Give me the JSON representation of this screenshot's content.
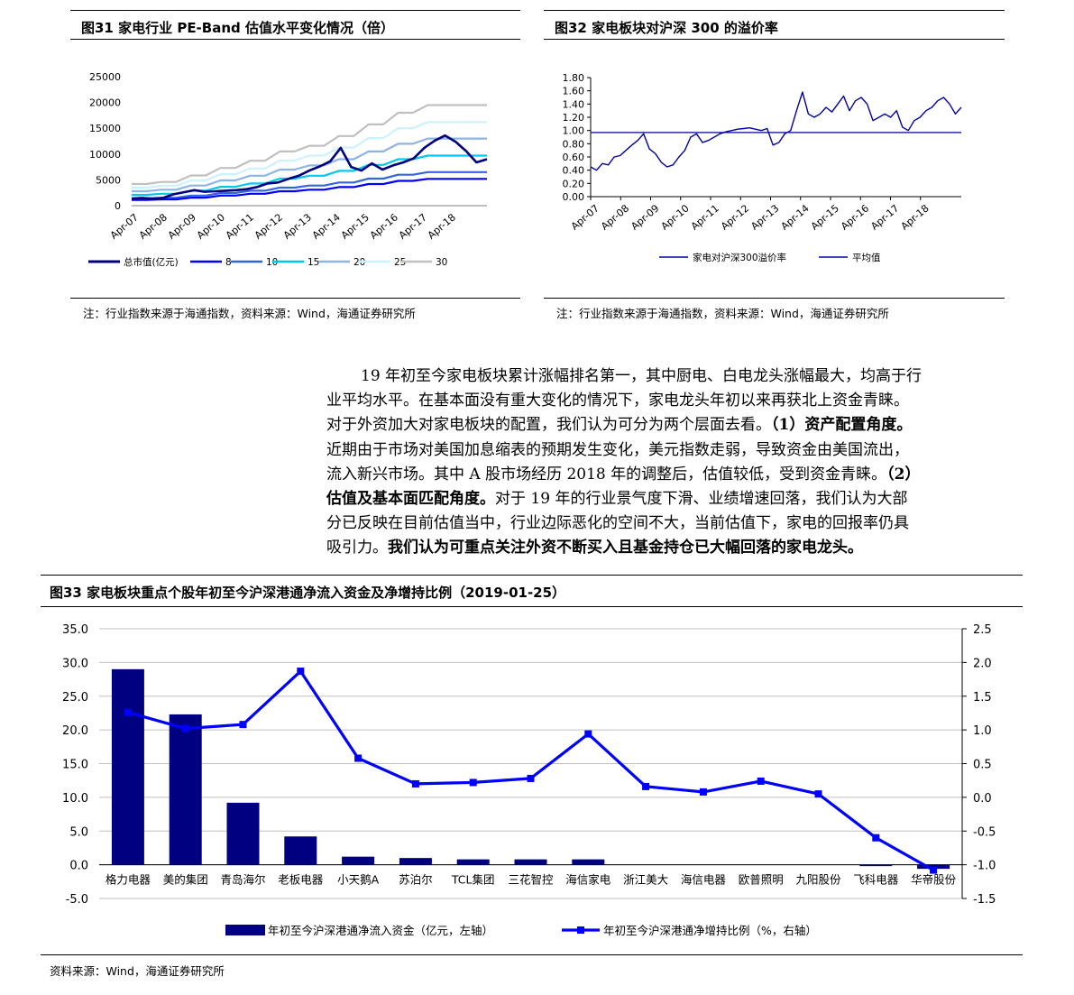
{
  "fig31": {
    "title": "图31 家电行业 PE-Band 估值水平变化情况（倍）",
    "note": "注：行业指数来源于海通指数，资料来源：Wind，海通证券研究所",
    "chart_data": {
      "type": "line",
      "title": "图31 家电行业 PE-Band 估值水平变化情况（倍）",
      "ylim": [
        0,
        25000
      ],
      "y_ticks": [
        "25000",
        "20000",
        "15000",
        "10000",
        "5000",
        "0"
      ],
      "x_ticks": [
        "Apr-07",
        "Apr-08",
        "Apr-09",
        "Apr-10",
        "Apr-11",
        "Apr-12",
        "Apr-13",
        "Apr-14",
        "Apr-15",
        "Apr-16",
        "Apr-17",
        "Apr-18"
      ],
      "series": [
        {
          "name": "总市值(亿元)",
          "color": "#00007f",
          "values": [
            1400,
            1500,
            1350,
            1500,
            2200,
            2600,
            3000,
            2700,
            2800,
            2900,
            3000,
            3200,
            3600,
            4300,
            4500,
            5200,
            5800,
            6800,
            7600,
            8600,
            11200,
            7500,
            6800,
            8200,
            7000,
            7800,
            8400,
            9200,
            11200,
            12600,
            13600,
            12400,
            10600,
            8400,
            9000
          ]
        },
        {
          "name": "8",
          "color": "#0000ff",
          "values": [
            1120,
            1120,
            1230,
            1230,
            1560,
            1560,
            1950,
            1950,
            2300,
            2300,
            2800,
            2800,
            3100,
            3100,
            3600,
            3600,
            4200,
            4200,
            4800,
            4800,
            5200,
            5200,
            5200,
            5200,
            5200
          ]
        },
        {
          "name": "10",
          "color": "#3366dd",
          "values": [
            1400,
            1400,
            1540,
            1540,
            1950,
            1950,
            2440,
            2440,
            2900,
            2900,
            3500,
            3500,
            3900,
            3900,
            4500,
            4500,
            5250,
            5250,
            6000,
            6000,
            6500,
            6500,
            6500,
            6500,
            6500
          ]
        },
        {
          "name": "15",
          "color": "#00c8f0",
          "values": [
            2100,
            2100,
            2300,
            2300,
            2900,
            2900,
            3650,
            3650,
            4300,
            4300,
            5250,
            5250,
            5800,
            5800,
            6750,
            6750,
            7900,
            7900,
            9000,
            9000,
            9700,
            9700,
            9700,
            9700,
            9700
          ]
        },
        {
          "name": "20",
          "color": "#8eb4e3",
          "values": [
            2800,
            2800,
            3100,
            3100,
            3900,
            3900,
            4900,
            4900,
            5800,
            5800,
            7000,
            7000,
            7800,
            7800,
            9000,
            9000,
            10500,
            10500,
            12000,
            12000,
            13000,
            13000,
            13000,
            13000,
            13000
          ]
        },
        {
          "name": "25",
          "color": "#ccf2ff",
          "values": [
            3500,
            3500,
            3850,
            3850,
            4900,
            4900,
            6100,
            6100,
            7200,
            7200,
            8750,
            8750,
            9700,
            9700,
            11250,
            11250,
            13100,
            13100,
            15000,
            15000,
            16200,
            16200,
            16200,
            16200,
            16200
          ]
        },
        {
          "name": "30",
          "color": "#c0c0c0",
          "values": [
            4200,
            4200,
            4600,
            4600,
            5850,
            5850,
            7300,
            7300,
            8700,
            8700,
            10500,
            10500,
            11600,
            11600,
            13500,
            13500,
            15750,
            15750,
            18000,
            18000,
            19500,
            19500,
            19500,
            19500,
            19500
          ]
        }
      ]
    }
  },
  "fig32": {
    "title": "图32 家电板块对沪深 300 的溢价率",
    "note": "注：行业指数来源于海通指数，资料来源：Wind，海通证券研究所",
    "chart_data": {
      "type": "line",
      "title": "图32 家电板块对沪深 300 的溢价率",
      "ylim": [
        0,
        1.8
      ],
      "y_ticks": [
        "1.80",
        "1.60",
        "1.40",
        "1.20",
        "1.00",
        "0.80",
        "0.60",
        "0.40",
        "0.20",
        "0.00"
      ],
      "x_ticks": [
        "Apr-07",
        "Apr-08",
        "Apr-09",
        "Apr-10",
        "Apr-11",
        "Apr-12",
        "Apr-13",
        "Apr-14",
        "Apr-15",
        "Apr-16",
        "Apr-17",
        "Apr-18"
      ],
      "series": [
        {
          "name": "家电对沪深300溢价率",
          "color": "#0000a0",
          "values": [
            0.45,
            0.4,
            0.5,
            0.48,
            0.6,
            0.62,
            0.7,
            0.78,
            0.85,
            0.95,
            0.72,
            0.65,
            0.52,
            0.45,
            0.48,
            0.6,
            0.7,
            0.9,
            0.95,
            0.82,
            0.85,
            0.9,
            0.95,
            0.98,
            1.0,
            1.02,
            1.03,
            1.04,
            1.02,
            1.0,
            1.03,
            0.78,
            0.82,
            0.95,
            1.0,
            1.3,
            1.58,
            1.25,
            1.2,
            1.25,
            1.35,
            1.28,
            1.4,
            1.52,
            1.3,
            1.45,
            1.5,
            1.4,
            1.15,
            1.2,
            1.25,
            1.2,
            1.3,
            1.05,
            1.0,
            1.15,
            1.2,
            1.3,
            1.35,
            1.45,
            1.5,
            1.4,
            1.25,
            1.35
          ]
        },
        {
          "name": "平均值",
          "color": "#0000a0",
          "values": [
            0.97,
            0.97
          ]
        }
      ]
    }
  },
  "paragraph": {
    "line1": "19 年初至今家电板块累计涨幅排名第一，其中厨电、白电龙头涨幅最大，均高于行",
    "line2": "业平均水平。在基本面没有重大变化的情况下，家电龙头年初以来再获北上资金青睐。",
    "line3a": "对于外资加大对家电板块的配置，我们认为可分为两个层面去看。",
    "line3b": "（1）资产配置角度。",
    "line4": "近期由于市场对美国加息缩表的预期发生变化，美元指数走弱，导致资金由美国流出，",
    "line5a": "流入新兴市场。其中 A 股市场经历 2018 年的调整后，估值较低，受到资金青睐。",
    "line5b": "（2）",
    "line6a": "估值及基本面匹配角度。",
    "line6b": "对于 19 年的行业景气度下滑、业绩增速回落，我们认为大部",
    "line7": "分已反映在目前估值当中，行业边际恶化的空间不大，当前估值下，家电的回报率仍具",
    "line8a": "吸引力。",
    "line8b": "我们认为可重点关注外资不断买入且基金持仓已大幅回落的家电龙头。"
  },
  "fig33": {
    "title": "图33 家电板块重点个股年初至今沪深港通净流入资金及净增持比例（2019-01-25）",
    "note": "资料来源：Wind，海通证券研究所",
    "chart_data": {
      "type": "bar",
      "title": "图33 家电板块重点个股年初至今沪深港通净流入资金及净增持比例（2019-01-25）",
      "categories": [
        "格力电器",
        "美的集团",
        "青岛海尔",
        "老板电器",
        "小天鹅A",
        "苏泊尔",
        "TCL集团",
        "三花智控",
        "海信家电",
        "浙江美大",
        "海信电器",
        "欧普照明",
        "九阳股份",
        "飞科电器",
        "华帝股份"
      ],
      "ylim_left": [
        -5,
        35
      ],
      "ylim_right": [
        -1.5,
        2.5
      ],
      "y_ticks_left": [
        "35.0",
        "30.0",
        "25.0",
        "20.0",
        "15.0",
        "10.0",
        "5.0",
        "0.0",
        "-5.0"
      ],
      "y_ticks_right": [
        "2.5",
        "2.0",
        "1.5",
        "1.0",
        "0.5",
        "0.0",
        "-0.5",
        "-1.0",
        "-1.5"
      ],
      "series": [
        {
          "name": "年初至今沪深港通净流入资金（亿元，左轴）",
          "type": "bar",
          "axis": "left",
          "color": "#000080",
          "values": [
            29.0,
            22.3,
            9.2,
            4.2,
            1.2,
            1.0,
            0.8,
            0.8,
            0.8,
            0.0,
            0.0,
            0.0,
            0.0,
            -0.2,
            -0.6
          ]
        },
        {
          "name": "年初至今沪深港通净增持比例（%，右轴）",
          "type": "line",
          "axis": "right",
          "color": "#0000ff",
          "values": [
            1.26,
            1.02,
            1.08,
            1.87,
            0.58,
            0.2,
            0.22,
            0.28,
            0.94,
            0.16,
            0.08,
            0.24,
            0.05,
            -0.6,
            -1.08
          ]
        }
      ]
    }
  }
}
